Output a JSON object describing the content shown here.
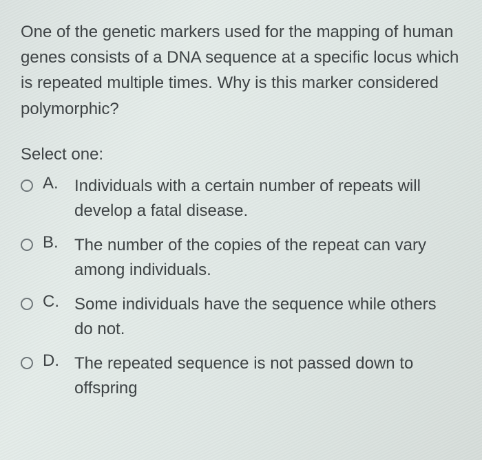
{
  "question": {
    "stem": "One of the genetic markers used for the mapping of human genes consists of a DNA sequence at a specific locus which is repeated multiple times. Why is this marker considered polymorphic?",
    "select_label": "Select one:",
    "options": [
      {
        "letter": "A.",
        "text": "Individuals with a certain number of repeats will develop a fatal disease."
      },
      {
        "letter": "B.",
        "text": "The number of the copies of the repeat can vary among individuals."
      },
      {
        "letter": "C.",
        "text": "Some individuals have the sequence while others do not."
      },
      {
        "letter": "D.",
        "text": "The repeated sequence is not passed down to offspring"
      }
    ]
  },
  "style": {
    "background_gradient": [
      "#dbe2e0",
      "#e4ece9",
      "#dfe7e4",
      "#d6ddda"
    ],
    "text_color": "#3b4042",
    "radio_border": "#6d7578",
    "font_size_pt": 18,
    "font_family": "Segoe UI / Helvetica Neue"
  }
}
